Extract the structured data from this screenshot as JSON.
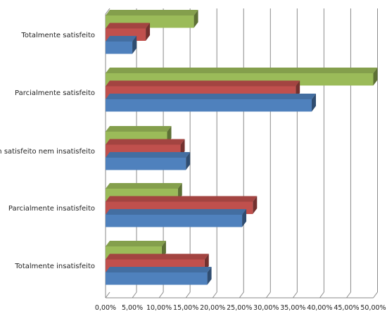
{
  "chart_data": {
    "type": "bar",
    "orientation": "horizontal",
    "style": "3d-clustered",
    "categories": [
      "Totalmente satisfeito",
      "Parcialmente satisfeito",
      "Nem satisfeito nem insatisfeito",
      "Parcialmente insatisfeito",
      "Totalmente insatisfeito"
    ],
    "series": [
      {
        "values": [
          16.5,
          50.0,
          11.5,
          13.5,
          10.5
        ],
        "color": "#9BBB59"
      },
      {
        "values": [
          7.5,
          35.5,
          14.0,
          27.5,
          18.5
        ],
        "color": "#C0504D"
      },
      {
        "values": [
          5.0,
          38.5,
          15.0,
          25.5,
          19.0
        ],
        "color": "#4F81BD"
      }
    ],
    "x_ticks": [
      "0,00%",
      "5,00%",
      "10,00%",
      "15,00%",
      "20,00%",
      "25,00%",
      "30,00%",
      "35,00%",
      "40,00%",
      "45,00%",
      "50,00%"
    ],
    "xlim": [
      0,
      50
    ],
    "grid": true,
    "legend": "none"
  }
}
